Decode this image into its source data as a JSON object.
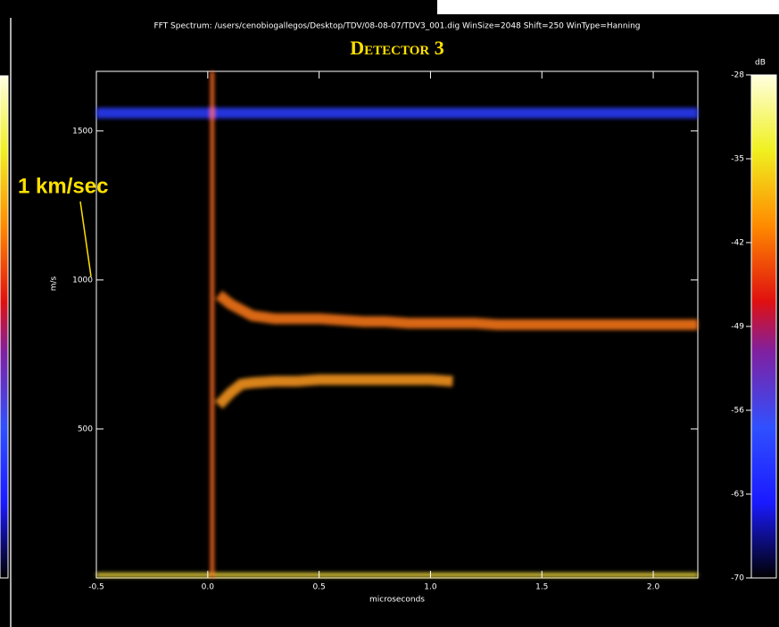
{
  "chart_data": {
    "type": "spectrogram",
    "header": "FFT Spectrum: /users/cenobiogallegos/Desktop/TDV/08-08-07/TDV3_001.dig     WinSize=2048   Shift=250   WinType=Hanning",
    "title": "Detector 3",
    "annotation": "1 km/sec",
    "x_label": "microseconds",
    "y_label": "m/s",
    "xlim": [
      -0.5,
      2.2
    ],
    "ylim": [
      0,
      1700
    ],
    "xticks": [
      -0.5,
      {
        "value": 0,
        "label": "0.0"
      },
      0.5,
      {
        "value": 1,
        "label": "1.0"
      },
      1.5,
      {
        "value": 2,
        "label": "2.0"
      }
    ],
    "yticks": [
      500,
      1000,
      1500
    ],
    "vline": {
      "value": 0.02,
      "color": "#ff6a20"
    },
    "x": [
      -0.5,
      -0.25,
      0.0,
      0.05,
      0.1,
      0.15,
      0.2,
      0.3,
      0.4,
      0.5,
      0.6,
      0.7,
      0.8,
      0.9,
      1.0,
      1.1,
      1.2,
      1.3,
      1.4,
      1.5,
      1.6,
      1.7,
      1.8,
      1.9,
      2.0,
      2.1,
      2.2
    ],
    "series": [
      {
        "color": "#2a3cff",
        "values": [
          1560,
          1560,
          1560,
          1560,
          1560,
          1560,
          1560,
          1560,
          1560,
          1560,
          1560,
          1560,
          1560,
          1560,
          1560,
          1560,
          1560,
          1560,
          1560,
          1560,
          1560,
          1560,
          1560,
          1560,
          1560,
          1560,
          1560
        ]
      },
      {
        "color": "#ff7a1a",
        "values": [
          null,
          null,
          null,
          950,
          920,
          900,
          880,
          870,
          870,
          870,
          865,
          860,
          860,
          855,
          855,
          855,
          855,
          850,
          850,
          850,
          850,
          850,
          850,
          850,
          850,
          850,
          850
        ]
      },
      {
        "color": "#ff9a20",
        "values": [
          null,
          null,
          null,
          580,
          620,
          650,
          655,
          660,
          660,
          665,
          665,
          665,
          665,
          665,
          665,
          660,
          null,
          null,
          null,
          null,
          null,
          null,
          null,
          null,
          null,
          null,
          null
        ]
      },
      {
        "color": "#ffe640",
        "values": [
          10,
          10,
          10,
          10,
          10,
          10,
          10,
          10,
          10,
          10,
          10,
          10,
          10,
          10,
          10,
          10,
          10,
          10,
          10,
          10,
          10,
          10,
          10,
          10,
          10,
          10,
          10
        ]
      }
    ],
    "colorbar": {
      "label": "dB",
      "lim": [
        -70,
        -28
      ],
      "ticks": [
        -28,
        -35,
        -42,
        -49,
        -56,
        -63,
        -70
      ]
    }
  }
}
